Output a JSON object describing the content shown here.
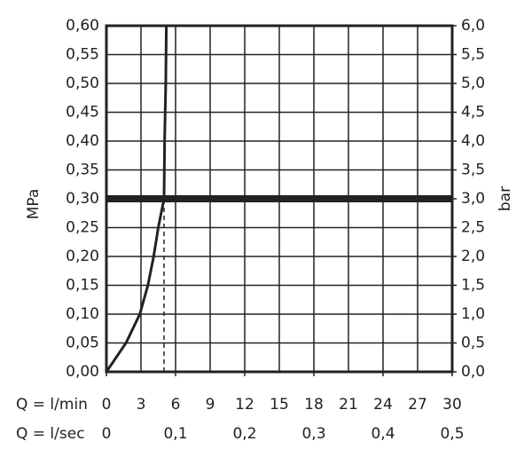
{
  "chart_data": {
    "type": "line",
    "ylabel": "MPa",
    "y2label": "bar",
    "xlabel": "Q = l/min",
    "x2label": "Q = l/sec",
    "x": [
      0,
      1.7,
      2.9,
      3.6,
      4.1,
      4.5,
      5.0,
      5.05,
      5.15,
      5.2
    ],
    "series": [
      {
        "color": "#222222",
        "values": [
          0,
          0.05,
          0.1,
          0.15,
          0.2,
          0.25,
          0.3,
          0.4,
          0.5,
          0.6
        ]
      }
    ],
    "xlim": [
      0,
      30
    ],
    "xticks": [
      0,
      3,
      6,
      9,
      12,
      15,
      18,
      21,
      24,
      27,
      30
    ],
    "x2lim": [
      0,
      0.5
    ],
    "x2ticks": [
      0,
      {
        "value": 0.1,
        "label": "0,1"
      },
      {
        "value": 0.2,
        "label": "0,2"
      },
      {
        "value": 0.3,
        "label": "0,3"
      },
      {
        "value": 0.4,
        "label": "0,4"
      },
      {
        "value": 0.5,
        "label": "0,5"
      }
    ],
    "ylim": [
      0,
      0.6
    ],
    "yticks": [
      {
        "value": 0,
        "label": "0,00"
      },
      {
        "value": 0.05,
        "label": "0,05"
      },
      {
        "value": 0.1,
        "label": "0,10"
      },
      {
        "value": 0.15,
        "label": "0,15"
      },
      {
        "value": 0.2,
        "label": "0,20"
      },
      {
        "value": 0.25,
        "label": "0,25"
      },
      {
        "value": 0.3,
        "label": "0,30"
      },
      {
        "value": 0.35,
        "label": "0,35"
      },
      {
        "value": 0.4,
        "label": "0,40"
      },
      {
        "value": 0.45,
        "label": "0,45"
      },
      {
        "value": 0.5,
        "label": "0,50"
      },
      {
        "value": 0.55,
        "label": "0,55"
      },
      {
        "value": 0.6,
        "label": "0,60"
      }
    ],
    "y2lim": [
      0,
      6
    ],
    "y2ticks": [
      {
        "value": 0,
        "label": "0,0"
      },
      {
        "value": 0.5,
        "label": "0,5"
      },
      {
        "value": 1,
        "label": "1,0"
      },
      {
        "value": 1.5,
        "label": "1,5"
      },
      {
        "value": 2,
        "label": "2,0"
      },
      {
        "value": 2.5,
        "label": "2,5"
      },
      {
        "value": 3,
        "label": "3,0"
      },
      {
        "value": 3.5,
        "label": "3,5"
      },
      {
        "value": 4,
        "label": "4,0"
      },
      {
        "value": 4.5,
        "label": "4,5"
      },
      {
        "value": 5,
        "label": "5,0"
      },
      {
        "value": 5.5,
        "label": "5,5"
      },
      {
        "value": 6,
        "label": "6,0"
      }
    ],
    "hline": 0.3,
    "vline": 5.0,
    "grid": true
  }
}
